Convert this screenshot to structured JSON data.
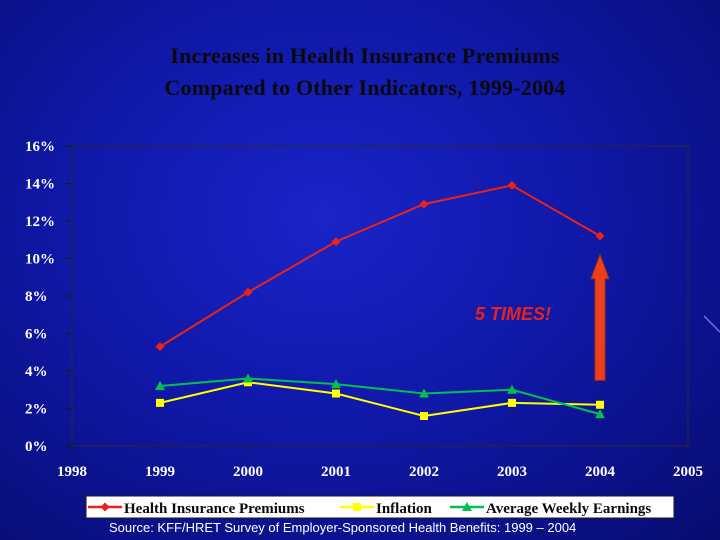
{
  "title": {
    "line1": "Increases in Health Insurance Premiums",
    "line2": "Compared to Other Indicators, 1999-2004"
  },
  "source": "Source:  KFF/HRET Survey of Employer-Sponsored Health Benefits: 1999 – 2004",
  "colors": {
    "title": "#0a0a0a",
    "axis_text": "#ffffff",
    "legend_text": "#0a0a0a",
    "health": "#e8231a",
    "inflation": "#ffff00",
    "earnings": "#00c050",
    "arrow": "#e8411b",
    "annotation": "#e8231a"
  },
  "chart_data": {
    "type": "line",
    "x": [
      1999,
      2000,
      2001,
      2002,
      2003,
      2004
    ],
    "xlim": [
      1998,
      2005
    ],
    "xticks": [
      "1998",
      "1999",
      "2000",
      "2001",
      "2002",
      "2003",
      "2004",
      "2005"
    ],
    "ylim": [
      0,
      16
    ],
    "yticks": [
      "0%",
      "2%",
      "4%",
      "6%",
      "8%",
      "10%",
      "12%",
      "14%",
      "16%"
    ],
    "series": [
      {
        "name": "Health Insurance Premiums",
        "marker": "diamond",
        "values": [
          5.3,
          8.2,
          10.9,
          12.9,
          13.9,
          11.2
        ]
      },
      {
        "name": "Inflation",
        "marker": "square",
        "values": [
          2.3,
          3.4,
          2.8,
          1.6,
          2.3,
          2.2
        ]
      },
      {
        "name": "Average Weekly Earnings",
        "marker": "triangle",
        "values": [
          3.2,
          3.6,
          3.3,
          2.8,
          3.0,
          1.7
        ]
      }
    ],
    "annotation": {
      "text": "5 TIMES!",
      "arrow_year": 2004,
      "arrow_from": 3.5,
      "arrow_to": 10.2
    }
  }
}
